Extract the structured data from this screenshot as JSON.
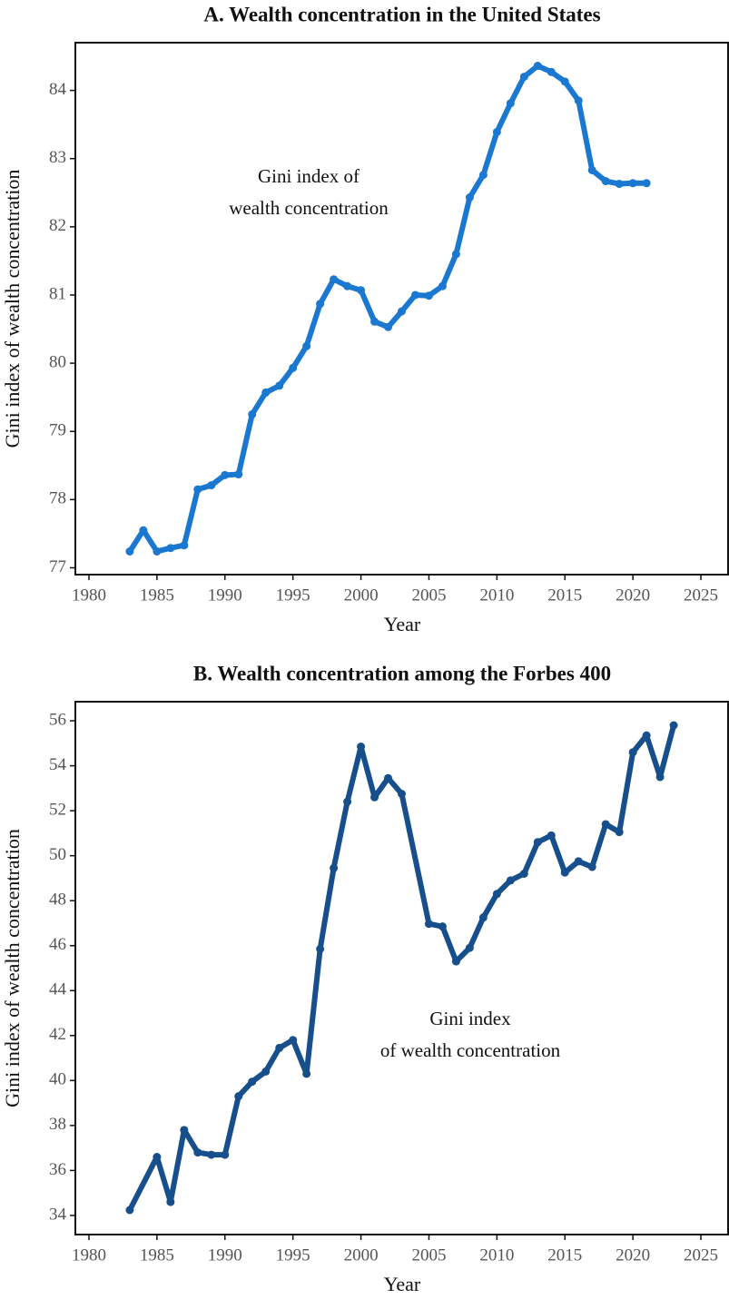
{
  "chart_data": [
    {
      "type": "line",
      "title": "A. Wealth concentration in the United States",
      "x_label": "Year",
      "y_label": "Gini index of wealth concentration",
      "annotation": [
        "Gini index of",
        "wealth concentration"
      ],
      "x": [
        1983,
        1984,
        1985,
        1986,
        1987,
        1988,
        1989,
        1990,
        1991,
        1992,
        1993,
        1994,
        1995,
        1996,
        1997,
        1998,
        1999,
        2000,
        2001,
        2002,
        2003,
        2004,
        2005,
        2006,
        2007,
        2008,
        2009,
        2010,
        2011,
        2012,
        2013,
        2014,
        2015,
        2016,
        2017,
        2018,
        2019,
        2020,
        2021
      ],
      "series": [
        {
          "name": "Gini index of wealth concentration",
          "color": "#1b78d0",
          "values": [
            77.24,
            77.55,
            77.24,
            77.29,
            77.33,
            78.15,
            78.21,
            78.36,
            78.37,
            79.25,
            79.57,
            79.67,
            79.93,
            80.25,
            80.87,
            81.23,
            81.13,
            81.07,
            80.61,
            80.53,
            80.76,
            81.0,
            80.99,
            81.13,
            81.6,
            82.43,
            82.76,
            83.39,
            83.81,
            84.2,
            84.36,
            84.27,
            84.13,
            83.85,
            82.83,
            82.67,
            82.63,
            82.64,
            82.64
          ]
        }
      ],
      "xlim": [
        1979,
        2027
      ],
      "xticks": [
        1980,
        1985,
        1990,
        1995,
        2000,
        2005,
        2010,
        2015,
        2020,
        2025
      ],
      "ylim": [
        76.9,
        84.7
      ],
      "yticks": [
        77,
        78,
        79,
        80,
        81,
        82,
        83,
        84
      ]
    },
    {
      "type": "line",
      "title": "B. Wealth concentration among the Forbes 400",
      "x_label": "Year",
      "y_label": "Gini index of wealth concentration",
      "annotation": [
        "Gini index",
        "of wealth concentration"
      ],
      "x": [
        1983,
        1985,
        1986,
        1987,
        1988,
        1989,
        1990,
        1991,
        1992,
        1993,
        1994,
        1995,
        1996,
        1997,
        1998,
        1999,
        2000,
        2001,
        2002,
        2003,
        2005,
        2006,
        2007,
        2008,
        2009,
        2010,
        2011,
        2012,
        2013,
        2014,
        2015,
        2016,
        2017,
        2018,
        2019,
        2020,
        2021,
        2022,
        2023
      ],
      "series": [
        {
          "name": "Gini index of wealth concentration",
          "color": "#164f8b",
          "values": [
            34.24,
            36.6,
            34.6,
            37.8,
            36.8,
            36.7,
            36.7,
            39.3,
            39.95,
            40.4,
            41.45,
            41.8,
            40.3,
            45.85,
            49.45,
            52.4,
            54.85,
            52.6,
            53.45,
            52.75,
            46.97,
            46.85,
            45.3,
            45.9,
            47.25,
            48.3,
            48.9,
            49.2,
            50.6,
            50.9,
            49.25,
            49.75,
            49.5,
            51.4,
            51.05,
            54.6,
            55.35,
            53.5,
            55.8
          ]
        }
      ],
      "xlim": [
        1979,
        2027
      ],
      "xticks": [
        1980,
        1985,
        1990,
        1995,
        2000,
        2005,
        2010,
        2015,
        2020,
        2025
      ],
      "ylim": [
        33.15,
        56.85
      ],
      "yticks": [
        34,
        36,
        38,
        40,
        42,
        44,
        46,
        48,
        50,
        52,
        54,
        56
      ]
    }
  ]
}
